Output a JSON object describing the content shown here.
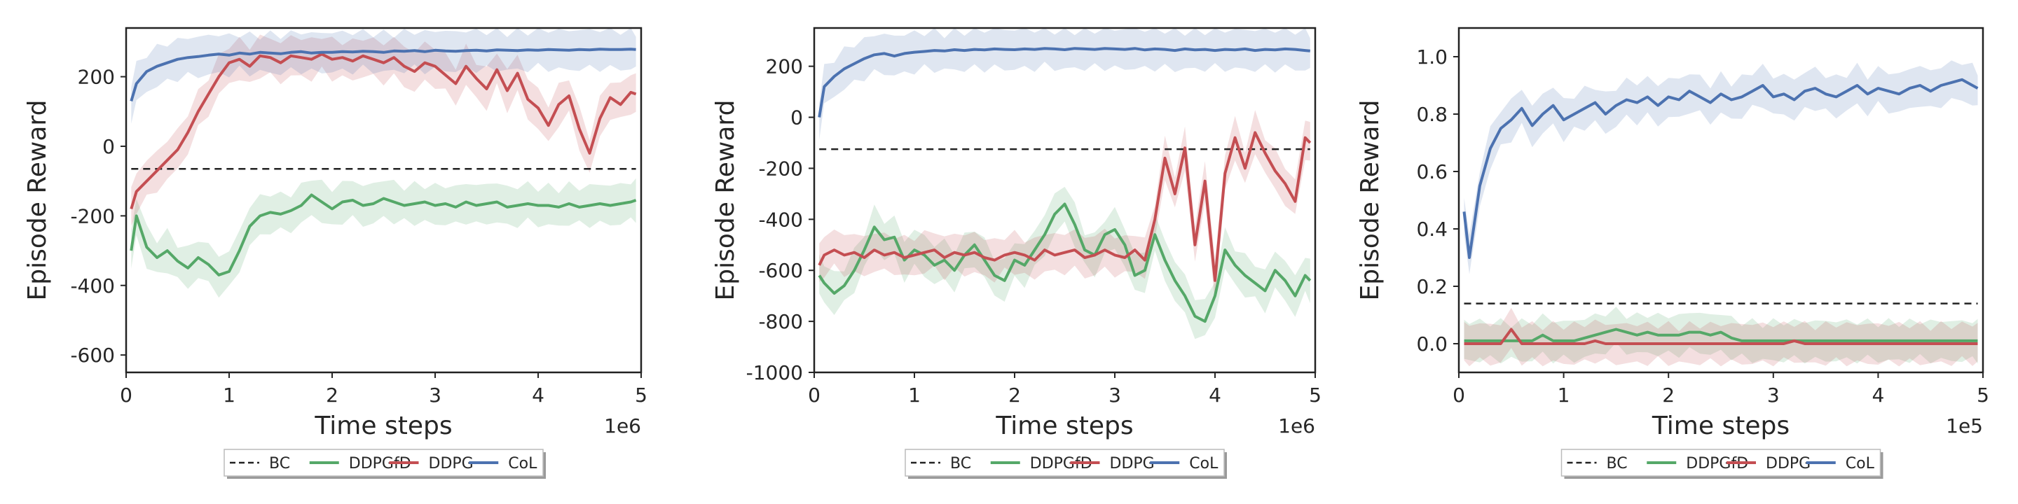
{
  "colors": {
    "BC": "#222222",
    "DDPGfD": "#55a868",
    "DDPG": "#c44e52",
    "CoL": "#4c72b0",
    "frame": "#222222",
    "tick": "#262626"
  },
  "chart_data": [
    {
      "type": "line",
      "title": "",
      "xlabel": "Time steps",
      "ylabel": "Episode Reward",
      "x_multiplier": "1e6",
      "xlim": [
        0,
        5
      ],
      "ylim": [
        -650,
        340
      ],
      "xticks": [
        "0",
        "1",
        "2",
        "3",
        "4",
        "5"
      ],
      "yticks": [
        "-600",
        "-400",
        "-200",
        "0",
        "200"
      ],
      "grid": false,
      "legend": {
        "placement": "bottom-center",
        "entries": [
          "BC",
          "DDPGfD",
          "DDPG",
          "CoL"
        ]
      },
      "x": [
        0.05,
        0.1,
        0.2,
        0.3,
        0.4,
        0.5,
        0.6,
        0.7,
        0.8,
        0.9,
        1.0,
        1.1,
        1.2,
        1.3,
        1.4,
        1.5,
        1.6,
        1.7,
        1.8,
        1.9,
        2.0,
        2.1,
        2.2,
        2.3,
        2.4,
        2.5,
        2.6,
        2.7,
        2.8,
        2.9,
        3.0,
        3.1,
        3.2,
        3.3,
        3.4,
        3.5,
        3.6,
        3.7,
        3.8,
        3.9,
        4.0,
        4.1,
        4.2,
        4.3,
        4.4,
        4.5,
        4.6,
        4.7,
        4.8,
        4.9,
        4.95
      ],
      "series": [
        {
          "name": "BC",
          "style": "dashed",
          "values": [
            -65,
            -65,
            -65,
            -65,
            -65,
            -65,
            -65,
            -65,
            -65,
            -65,
            -65,
            -65,
            -65,
            -65,
            -65,
            -65,
            -65,
            -65,
            -65,
            -65,
            -65,
            -65,
            -65,
            -65,
            -65,
            -65,
            -65,
            -65,
            -65,
            -65,
            -65,
            -65,
            -65,
            -65,
            -65,
            -65,
            -65,
            -65,
            -65,
            -65,
            -65,
            -65,
            -65,
            -65,
            -65,
            -65,
            -65,
            -65,
            -65,
            -65,
            -65
          ]
        },
        {
          "name": "DDPGfD",
          "values": [
            -300,
            -200,
            -290,
            -320,
            -300,
            -330,
            -350,
            -320,
            -340,
            -370,
            -360,
            -300,
            -230,
            -200,
            -190,
            -195,
            -185,
            -170,
            -140,
            -160,
            -180,
            -160,
            -155,
            -170,
            -165,
            -150,
            -160,
            -170,
            -165,
            -160,
            -170,
            -165,
            -175,
            -160,
            -170,
            -165,
            -160,
            -175,
            -170,
            -165,
            -170,
            -170,
            -175,
            -165,
            -175,
            -170,
            -165,
            -170,
            -165,
            -160,
            -155
          ]
        },
        {
          "name": "DDPG",
          "values": [
            -180,
            -130,
            -100,
            -70,
            -40,
            -10,
            40,
            100,
            150,
            200,
            240,
            250,
            230,
            260,
            255,
            240,
            260,
            255,
            250,
            265,
            250,
            255,
            245,
            260,
            250,
            240,
            255,
            230,
            215,
            240,
            230,
            205,
            180,
            230,
            195,
            165,
            220,
            160,
            210,
            135,
            110,
            60,
            120,
            145,
            50,
            -20,
            80,
            140,
            120,
            155,
            150
          ]
        },
        {
          "name": "CoL",
          "values": [
            130,
            180,
            215,
            230,
            240,
            250,
            255,
            258,
            262,
            265,
            262,
            268,
            265,
            270,
            268,
            266,
            270,
            272,
            268,
            270,
            270,
            272,
            271,
            273,
            272,
            270,
            274,
            273,
            275,
            272,
            276,
            274,
            273,
            275,
            276,
            274,
            277,
            276,
            275,
            277,
            276,
            278,
            277,
            276,
            278,
            277,
            279,
            278,
            278,
            279,
            278
          ]
        }
      ]
    },
    {
      "type": "line",
      "title": "",
      "xlabel": "Time steps",
      "ylabel": "Episode Reward",
      "x_multiplier": "1e6",
      "xlim": [
        0,
        5
      ],
      "ylim": [
        -1000,
        350
      ],
      "xticks": [
        "0",
        "1",
        "2",
        "3",
        "4",
        "5"
      ],
      "yticks": [
        "-1000",
        "-800",
        "-600",
        "-400",
        "-200",
        "0",
        "200"
      ],
      "grid": false,
      "legend": {
        "placement": "bottom-center",
        "entries": [
          "BC",
          "DDPGfD",
          "DDPG",
          "CoL"
        ]
      },
      "x": [
        0.05,
        0.1,
        0.2,
        0.3,
        0.4,
        0.5,
        0.6,
        0.7,
        0.8,
        0.9,
        1.0,
        1.1,
        1.2,
        1.3,
        1.4,
        1.5,
        1.6,
        1.7,
        1.8,
        1.9,
        2.0,
        2.1,
        2.2,
        2.3,
        2.4,
        2.5,
        2.6,
        2.7,
        2.8,
        2.9,
        3.0,
        3.1,
        3.2,
        3.3,
        3.4,
        3.5,
        3.6,
        3.7,
        3.8,
        3.9,
        4.0,
        4.1,
        4.2,
        4.3,
        4.4,
        4.5,
        4.6,
        4.7,
        4.8,
        4.9,
        4.95
      ],
      "series": [
        {
          "name": "BC",
          "style": "dashed",
          "values": [
            -125,
            -125,
            -125,
            -125,
            -125,
            -125,
            -125,
            -125,
            -125,
            -125,
            -125,
            -125,
            -125,
            -125,
            -125,
            -125,
            -125,
            -125,
            -125,
            -125,
            -125,
            -125,
            -125,
            -125,
            -125,
            -125,
            -125,
            -125,
            -125,
            -125,
            -125,
            -125,
            -125,
            -125,
            -125,
            -125,
            -125,
            -125,
            -125,
            -125,
            -125,
            -125,
            -125,
            -125,
            -125,
            -125,
            -125,
            -125,
            -125,
            -125,
            -125
          ]
        },
        {
          "name": "DDPGfD",
          "values": [
            -620,
            -650,
            -690,
            -660,
            -600,
            -520,
            -430,
            -480,
            -470,
            -560,
            -520,
            -540,
            -580,
            -560,
            -600,
            -540,
            -500,
            -560,
            -620,
            -640,
            -560,
            -580,
            -520,
            -460,
            -380,
            -340,
            -420,
            -520,
            -540,
            -460,
            -440,
            -500,
            -620,
            -600,
            -460,
            -560,
            -640,
            -700,
            -780,
            -800,
            -700,
            -520,
            -580,
            -620,
            -650,
            -680,
            -600,
            -640,
            -700,
            -620,
            -640
          ]
        },
        {
          "name": "DDPG",
          "values": [
            -580,
            -540,
            -520,
            -540,
            -530,
            -550,
            -520,
            -540,
            -530,
            -550,
            -540,
            -530,
            -520,
            -550,
            -530,
            -540,
            -530,
            -550,
            -560,
            -540,
            -530,
            -540,
            -560,
            -520,
            -540,
            -530,
            -520,
            -550,
            -540,
            -520,
            -540,
            -550,
            -520,
            -560,
            -400,
            -160,
            -300,
            -120,
            -500,
            -250,
            -640,
            -220,
            -80,
            -200,
            -60,
            -140,
            -210,
            -260,
            -330,
            -80,
            -100
          ]
        },
        {
          "name": "CoL",
          "values": [
            0,
            120,
            160,
            190,
            210,
            230,
            245,
            250,
            240,
            250,
            255,
            258,
            262,
            260,
            265,
            262,
            266,
            264,
            268,
            266,
            265,
            268,
            266,
            270,
            268,
            265,
            270,
            268,
            266,
            270,
            268,
            266,
            270,
            264,
            268,
            266,
            262,
            268,
            264,
            266,
            262,
            266,
            264,
            268,
            262,
            266,
            264,
            268,
            266,
            262,
            260
          ]
        }
      ]
    },
    {
      "type": "line",
      "title": "",
      "xlabel": "Time steps",
      "ylabel": "Episode Reward",
      "x_multiplier": "1e5",
      "xlim": [
        0,
        5
      ],
      "ylim": [
        -0.1,
        1.1
      ],
      "xticks": [
        "0",
        "1",
        "2",
        "3",
        "4",
        "5"
      ],
      "yticks": [
        "0.0",
        "0.2",
        "0.4",
        "0.6",
        "0.8",
        "1.0"
      ],
      "grid": false,
      "legend": {
        "placement": "bottom-center",
        "entries": [
          "BC",
          "DDPGfD",
          "DDPG",
          "CoL"
        ]
      },
      "x": [
        0.05,
        0.1,
        0.2,
        0.3,
        0.4,
        0.5,
        0.6,
        0.7,
        0.8,
        0.9,
        1.0,
        1.1,
        1.2,
        1.3,
        1.4,
        1.5,
        1.6,
        1.7,
        1.8,
        1.9,
        2.0,
        2.1,
        2.2,
        2.3,
        2.4,
        2.5,
        2.6,
        2.7,
        2.8,
        2.9,
        3.0,
        3.1,
        3.2,
        3.3,
        3.4,
        3.5,
        3.6,
        3.7,
        3.8,
        3.9,
        4.0,
        4.1,
        4.2,
        4.3,
        4.4,
        4.5,
        4.6,
        4.7,
        4.8,
        4.9,
        4.95
      ],
      "series": [
        {
          "name": "BC",
          "style": "dashed",
          "values": [
            0.14,
            0.14,
            0.14,
            0.14,
            0.14,
            0.14,
            0.14,
            0.14,
            0.14,
            0.14,
            0.14,
            0.14,
            0.14,
            0.14,
            0.14,
            0.14,
            0.14,
            0.14,
            0.14,
            0.14,
            0.14,
            0.14,
            0.14,
            0.14,
            0.14,
            0.14,
            0.14,
            0.14,
            0.14,
            0.14,
            0.14,
            0.14,
            0.14,
            0.14,
            0.14,
            0.14,
            0.14,
            0.14,
            0.14,
            0.14,
            0.14,
            0.14,
            0.14,
            0.14,
            0.14,
            0.14,
            0.14,
            0.14,
            0.14,
            0.14,
            0.14
          ]
        },
        {
          "name": "DDPGfD",
          "values": [
            0.01,
            0.01,
            0.01,
            0.01,
            0.01,
            0.01,
            0.01,
            0.01,
            0.03,
            0.01,
            0.01,
            0.01,
            0.02,
            0.03,
            0.04,
            0.05,
            0.04,
            0.03,
            0.04,
            0.03,
            0.03,
            0.03,
            0.04,
            0.04,
            0.03,
            0.04,
            0.02,
            0.01,
            0.01,
            0.01,
            0.01,
            0.01,
            0.01,
            0.01,
            0.01,
            0.01,
            0.01,
            0.01,
            0.01,
            0.01,
            0.01,
            0.01,
            0.01,
            0.01,
            0.01,
            0.01,
            0.01,
            0.01,
            0.01,
            0.01,
            0.01
          ]
        },
        {
          "name": "DDPG",
          "values": [
            0.0,
            0.0,
            0.0,
            0.0,
            0.0,
            0.05,
            0.0,
            0.0,
            0.0,
            0.0,
            0.0,
            0.0,
            0.0,
            0.01,
            0.0,
            0.0,
            0.0,
            0.0,
            0.0,
            0.0,
            0.0,
            0.0,
            0.0,
            0.0,
            0.0,
            0.0,
            0.0,
            0.0,
            0.0,
            0.0,
            0.0,
            0.0,
            0.01,
            0.0,
            0.0,
            0.0,
            0.0,
            0.0,
            0.0,
            0.0,
            0.0,
            0.0,
            0.0,
            0.0,
            0.0,
            0.0,
            0.0,
            0.0,
            0.0,
            0.0,
            0.0
          ]
        },
        {
          "name": "CoL",
          "values": [
            0.46,
            0.3,
            0.55,
            0.68,
            0.75,
            0.78,
            0.82,
            0.76,
            0.8,
            0.83,
            0.78,
            0.8,
            0.82,
            0.84,
            0.8,
            0.83,
            0.85,
            0.84,
            0.86,
            0.83,
            0.86,
            0.85,
            0.88,
            0.86,
            0.84,
            0.87,
            0.85,
            0.86,
            0.88,
            0.9,
            0.86,
            0.87,
            0.85,
            0.88,
            0.89,
            0.87,
            0.86,
            0.88,
            0.9,
            0.87,
            0.89,
            0.88,
            0.87,
            0.89,
            0.9,
            0.88,
            0.9,
            0.91,
            0.92,
            0.9,
            0.89
          ]
        }
      ]
    }
  ]
}
